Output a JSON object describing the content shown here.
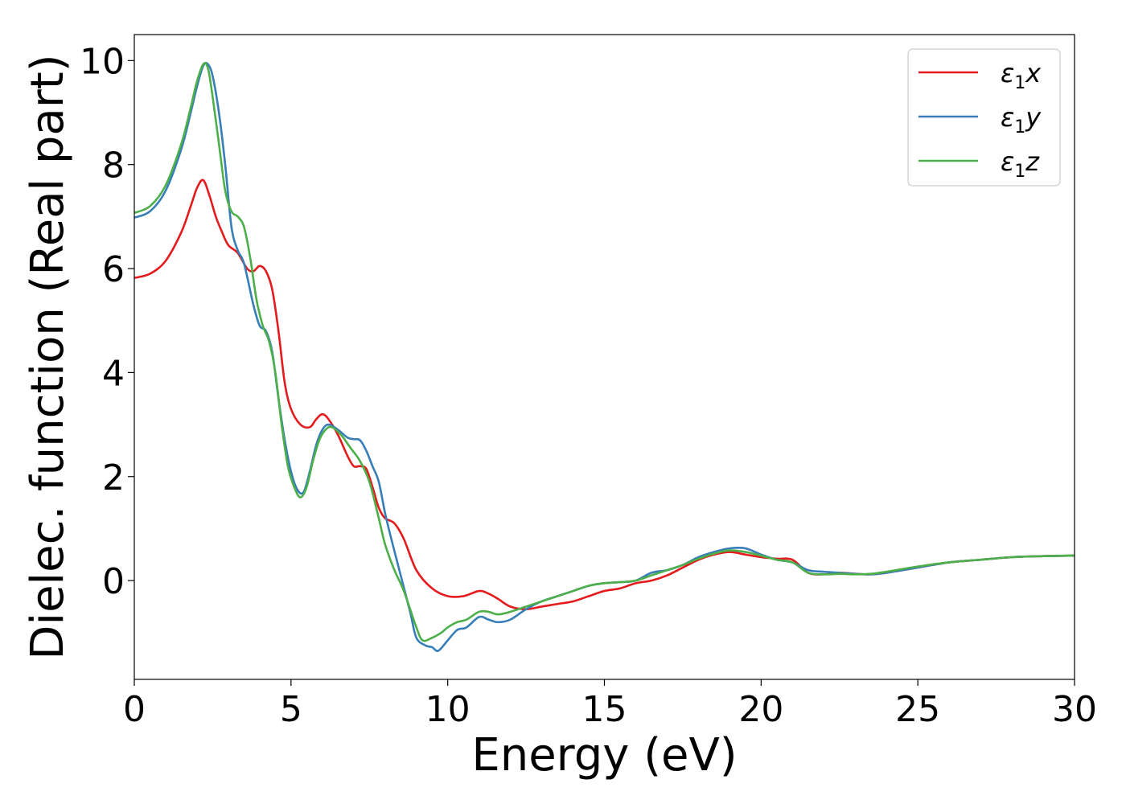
{
  "chart_data": {
    "type": "line",
    "title": "",
    "xlabel": "Energy (eV)",
    "ylabel": "Dielec. function (Real part)",
    "xlim": [
      0,
      30
    ],
    "ylim": [
      -1.9,
      10.5
    ],
    "xticks": [
      0,
      5,
      10,
      15,
      20,
      25,
      30
    ],
    "yticks": [
      0,
      2,
      4,
      6,
      8,
      10
    ],
    "grid": false,
    "legend": "top-right",
    "series": [
      {
        "name": "ε₁x",
        "legend_main": "ε",
        "legend_sub": "1",
        "legend_suffix": "x",
        "color": "#e41a1c",
        "x": [
          0,
          0.5,
          1.0,
          1.5,
          1.8,
          2.0,
          2.2,
          2.4,
          2.6,
          2.8,
          3.0,
          3.3,
          3.6,
          3.8,
          4.0,
          4.2,
          4.4,
          4.6,
          4.8,
          5.0,
          5.3,
          5.6,
          5.8,
          6.0,
          6.2,
          6.5,
          6.8,
          7.0,
          7.2,
          7.4,
          7.6,
          7.8,
          8.0,
          8.3,
          8.6,
          9.0,
          9.5,
          10.0,
          10.5,
          11.0,
          11.3,
          11.6,
          12.0,
          12.5,
          13.0,
          13.5,
          14.0,
          14.5,
          15.0,
          15.5,
          16.0,
          16.5,
          17.0,
          17.5,
          18.0,
          18.5,
          19.0,
          19.5,
          20.0,
          20.5,
          21.0,
          21.5,
          22.0,
          22.5,
          23.0,
          23.5,
          24.0,
          25.0,
          26.0,
          27.0,
          28.0,
          29.0,
          30.0
        ],
        "y": [
          5.82,
          5.9,
          6.15,
          6.7,
          7.2,
          7.55,
          7.7,
          7.4,
          7.0,
          6.7,
          6.45,
          6.3,
          6.0,
          5.95,
          6.05,
          5.95,
          5.6,
          4.8,
          3.8,
          3.3,
          3.0,
          2.95,
          3.1,
          3.2,
          3.1,
          2.8,
          2.4,
          2.2,
          2.2,
          2.15,
          1.8,
          1.4,
          1.2,
          1.1,
          0.8,
          0.2,
          -0.15,
          -0.3,
          -0.3,
          -0.2,
          -0.25,
          -0.35,
          -0.5,
          -0.55,
          -0.5,
          -0.45,
          -0.4,
          -0.3,
          -0.2,
          -0.15,
          -0.05,
          0.0,
          0.1,
          0.25,
          0.4,
          0.5,
          0.55,
          0.5,
          0.45,
          0.42,
          0.4,
          0.15,
          0.12,
          0.15,
          0.13,
          0.12,
          0.15,
          0.25,
          0.35,
          0.4,
          0.45,
          0.47,
          0.48
        ]
      },
      {
        "name": "ε₁y",
        "legend_main": "ε",
        "legend_sub": "1",
        "legend_suffix": "y",
        "color": "#377eb8",
        "x": [
          0,
          0.5,
          1.0,
          1.5,
          1.8,
          2.0,
          2.2,
          2.35,
          2.5,
          2.7,
          2.9,
          3.1,
          3.3,
          3.5,
          3.8,
          4.0,
          4.2,
          4.4,
          4.6,
          4.8,
          5.0,
          5.2,
          5.4,
          5.6,
          5.8,
          6.0,
          6.2,
          6.5,
          6.8,
          7.0,
          7.2,
          7.4,
          7.6,
          7.8,
          8.0,
          8.2,
          8.5,
          8.8,
          9.0,
          9.3,
          9.5,
          9.7,
          10.0,
          10.3,
          10.6,
          11.0,
          11.3,
          11.6,
          12.0,
          12.5,
          13.0,
          13.5,
          14.0,
          14.5,
          15.0,
          15.5,
          16.0,
          16.5,
          17.0,
          17.5,
          18.0,
          18.5,
          19.0,
          19.5,
          20.0,
          20.5,
          21.0,
          21.5,
          22.0,
          22.5,
          23.0,
          23.5,
          24.0,
          25.0,
          26.0,
          27.0,
          28.0,
          29.0,
          30.0
        ],
        "y": [
          6.98,
          7.1,
          7.5,
          8.3,
          9.0,
          9.5,
          9.9,
          9.93,
          9.7,
          9.0,
          8.0,
          6.8,
          6.35,
          6.1,
          5.3,
          4.9,
          4.8,
          4.4,
          3.5,
          2.7,
          2.1,
          1.75,
          1.7,
          2.1,
          2.6,
          2.9,
          3.0,
          2.9,
          2.75,
          2.72,
          2.7,
          2.5,
          2.2,
          1.9,
          1.3,
          0.8,
          0.1,
          -0.6,
          -1.1,
          -1.25,
          -1.28,
          -1.35,
          -1.15,
          -0.95,
          -0.9,
          -0.7,
          -0.75,
          -0.8,
          -0.75,
          -0.55,
          -0.4,
          -0.3,
          -0.2,
          -0.1,
          -0.05,
          -0.03,
          0.0,
          0.15,
          0.2,
          0.3,
          0.45,
          0.55,
          0.62,
          0.62,
          0.5,
          0.4,
          0.35,
          0.2,
          0.17,
          0.15,
          0.13,
          0.12,
          0.15,
          0.25,
          0.35,
          0.4,
          0.45,
          0.47,
          0.48
        ]
      },
      {
        "name": "ε₁z",
        "legend_main": "ε",
        "legend_sub": "1",
        "legend_suffix": "z",
        "color": "#4daf4a",
        "x": [
          0,
          0.5,
          1.0,
          1.5,
          1.8,
          2.0,
          2.2,
          2.35,
          2.5,
          2.7,
          2.9,
          3.1,
          3.3,
          3.5,
          3.7,
          3.9,
          4.1,
          4.3,
          4.5,
          4.7,
          4.9,
          5.1,
          5.3,
          5.5,
          5.7,
          5.9,
          6.1,
          6.3,
          6.6,
          6.9,
          7.2,
          7.5,
          7.8,
          8.0,
          8.3,
          8.6,
          9.0,
          9.2,
          9.5,
          9.8,
          10.0,
          10.3,
          10.6,
          11.0,
          11.3,
          11.6,
          12.0,
          12.5,
          13.0,
          13.5,
          14.0,
          14.5,
          15.0,
          15.5,
          16.0,
          16.5,
          17.0,
          17.5,
          18.0,
          18.5,
          19.0,
          19.5,
          20.0,
          20.5,
          21.0,
          21.5,
          22.0,
          22.5,
          23.0,
          23.5,
          24.0,
          25.0,
          26.0,
          27.0,
          28.0,
          29.0,
          30.0
        ],
        "y": [
          7.07,
          7.2,
          7.6,
          8.4,
          9.1,
          9.6,
          9.93,
          9.85,
          9.3,
          8.4,
          7.5,
          7.1,
          7.0,
          6.8,
          6.2,
          5.4,
          4.9,
          4.6,
          4.0,
          3.0,
          2.2,
          1.8,
          1.6,
          1.8,
          2.3,
          2.7,
          2.9,
          2.95,
          2.8,
          2.55,
          2.3,
          1.9,
          1.2,
          0.7,
          0.2,
          -0.2,
          -0.9,
          -1.15,
          -1.1,
          -1.0,
          -0.9,
          -0.8,
          -0.75,
          -0.6,
          -0.6,
          -0.65,
          -0.6,
          -0.5,
          -0.4,
          -0.3,
          -0.2,
          -0.1,
          -0.05,
          -0.03,
          0.0,
          0.1,
          0.2,
          0.3,
          0.42,
          0.52,
          0.58,
          0.55,
          0.48,
          0.4,
          0.35,
          0.15,
          0.12,
          0.13,
          0.12,
          0.13,
          0.17,
          0.27,
          0.35,
          0.4,
          0.45,
          0.47,
          0.48
        ]
      }
    ]
  }
}
